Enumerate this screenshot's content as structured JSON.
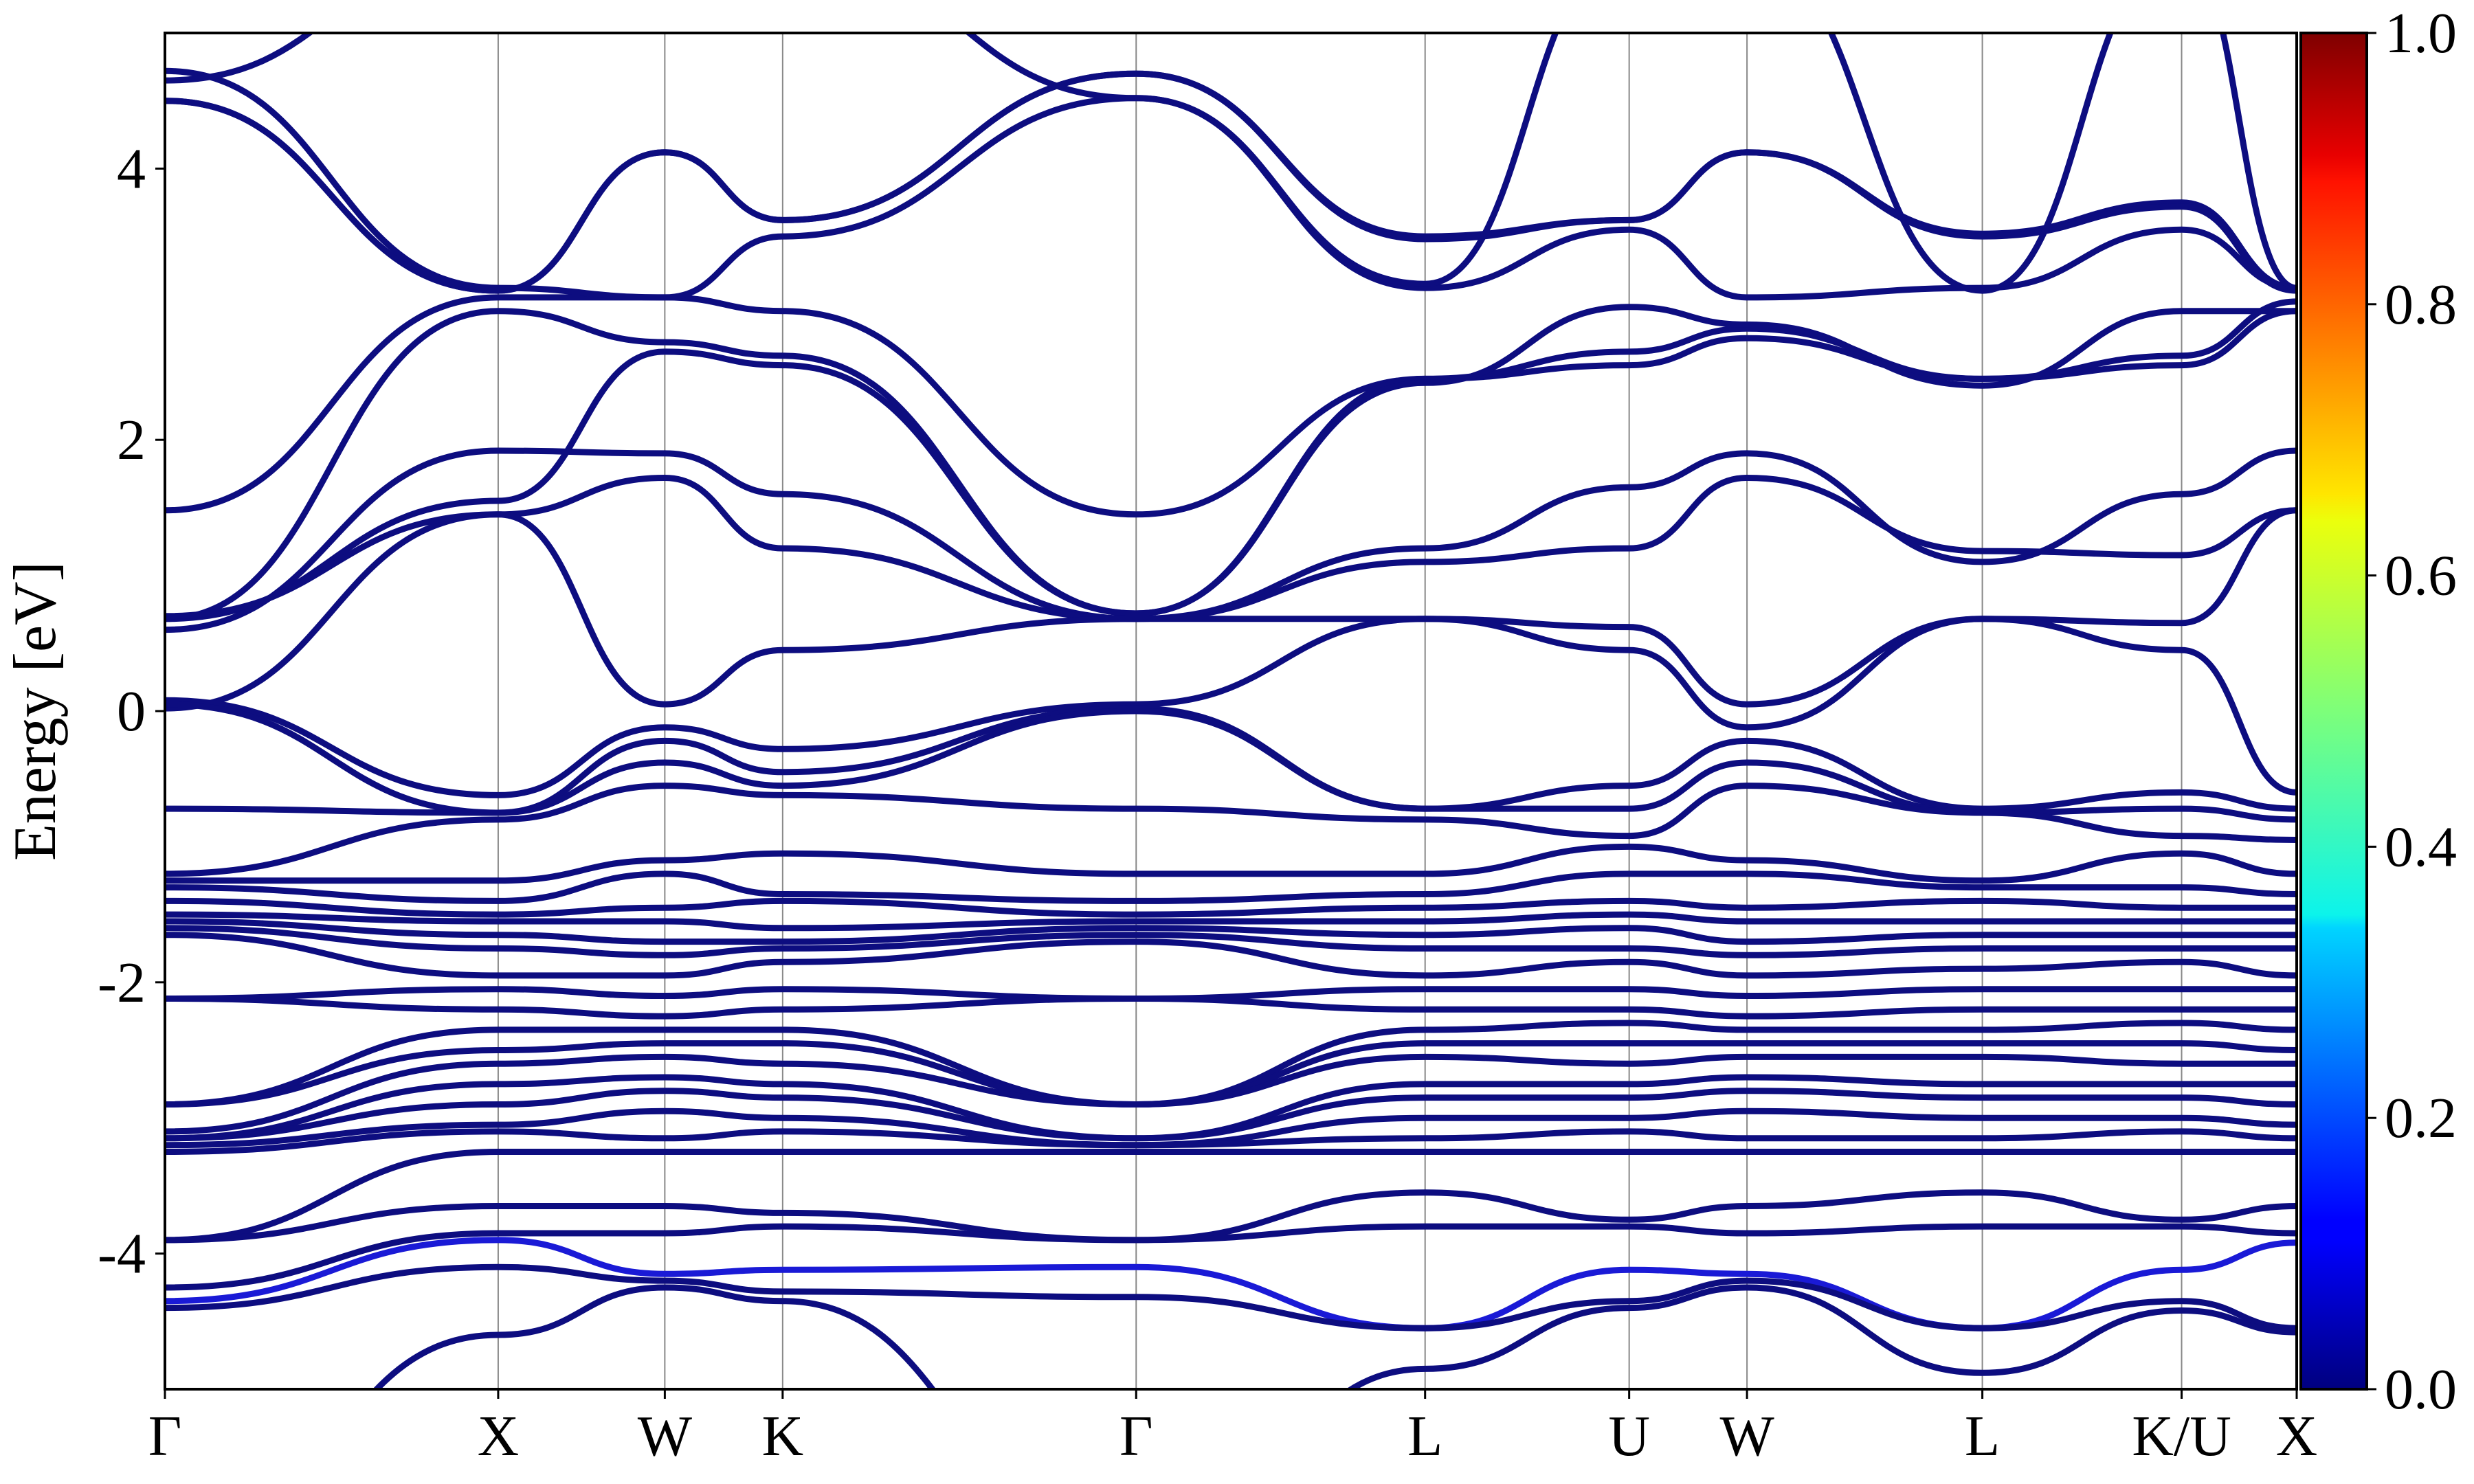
{
  "chart_data": {
    "type": "line",
    "title": "",
    "xlabel": "",
    "ylabel": "Energy [eV]",
    "ylim": [
      -5,
      5
    ],
    "y_ticks": [
      {
        "value": -4,
        "label": "-4"
      },
      {
        "value": -2,
        "label": "-2"
      },
      {
        "value": 0,
        "label": "0"
      },
      {
        "value": 2,
        "label": "2"
      },
      {
        "value": 4,
        "label": "4"
      }
    ],
    "xlim": [
      0,
      6.205
    ],
    "k_path": [
      {
        "label": "Γ",
        "x": 0.0
      },
      {
        "label": "X",
        "x": 0.97
      },
      {
        "label": "W",
        "x": 1.455
      },
      {
        "label": "K",
        "x": 1.798
      },
      {
        "label": "Γ",
        "x": 2.827
      },
      {
        "label": "L",
        "x": 3.668
      },
      {
        "label": "U",
        "x": 4.262
      },
      {
        "label": "W",
        "x": 4.605
      },
      {
        "label": "L",
        "x": 5.29
      },
      {
        "label": "K/U",
        "x": 5.87
      },
      {
        "label": "X",
        "x": 6.205
      }
    ],
    "grid": "vertical lines at high-symmetry points",
    "colormap": "jet",
    "colorbar": {
      "ticks": [
        {
          "value": 0.0,
          "label": "0.0"
        },
        {
          "value": 0.2,
          "label": "0.2"
        },
        {
          "value": 0.4,
          "label": "0.4"
        },
        {
          "value": 0.6,
          "label": "0.6"
        },
        {
          "value": 0.8,
          "label": "0.8"
        },
        {
          "value": 1.0,
          "label": "1.0"
        }
      ],
      "range": [
        0,
        1
      ]
    },
    "line_color": "#0d0d80",
    "highlight_color": "#1a1ad6",
    "series": [
      {
        "values": [
          1.48,
          3.05,
          3.05,
          2.95,
          1.45,
          2.45,
          2.55,
          2.75,
          2.45,
          2.55,
          2.95
        ],
        "weight": 0.05
      },
      {
        "values": [
          0.68,
          2.95,
          2.72,
          2.62,
          0.72,
          2.45,
          2.65,
          2.82,
          2.45,
          2.62,
          3.02
        ],
        "weight": 0.05
      },
      {
        "values": [
          0.68,
          1.55,
          2.65,
          2.55,
          0.72,
          2.42,
          2.98,
          2.85,
          2.4,
          2.95,
          2.95
        ],
        "weight": 0.05
      },
      {
        "values": [
          0.6,
          1.92,
          1.9,
          1.6,
          0.68,
          1.2,
          1.65,
          1.9,
          1.1,
          1.6,
          1.92
        ],
        "weight": 0.05
      },
      {
        "values": [
          0.02,
          1.45,
          1.72,
          1.2,
          0.68,
          1.1,
          1.2,
          1.72,
          1.18,
          1.15,
          1.48
        ],
        "weight": 0.05
      },
      {
        "values": [
          0.7,
          1.45,
          0.05,
          0.45,
          0.68,
          0.68,
          0.62,
          0.05,
          0.68,
          0.65,
          1.48
        ],
        "weight": 0.05
      },
      {
        "values": [
          0.08,
          -0.62,
          -0.12,
          -0.28,
          0.05,
          0.68,
          0.45,
          -0.12,
          0.68,
          0.45,
          -0.6
        ],
        "weight": 0.05
      },
      {
        "values": [
          0.05,
          -0.75,
          -0.22,
          -0.45,
          0.02,
          -0.72,
          -0.55,
          -0.22,
          -0.72,
          -0.6,
          -0.72
        ],
        "weight": 0.05
      },
      {
        "values": [
          -0.72,
          -0.75,
          -0.38,
          -0.55,
          0.0,
          -0.72,
          -0.72,
          -0.38,
          -0.75,
          -0.72,
          -0.8
        ],
        "weight": 0.05
      },
      {
        "values": [
          -1.2,
          -0.8,
          -0.55,
          -0.62,
          -0.72,
          -0.8,
          -0.92,
          -0.55,
          -0.75,
          -0.92,
          -0.95
        ],
        "weight": 0.05
      },
      {
        "values": [
          -1.25,
          -1.25,
          -1.1,
          -1.05,
          -1.2,
          -1.2,
          -1.0,
          -1.1,
          -1.25,
          -1.05,
          -1.2
        ],
        "weight": 0.05
      },
      {
        "values": [
          -1.3,
          -1.4,
          -1.2,
          -1.35,
          -1.4,
          -1.35,
          -1.2,
          -1.2,
          -1.3,
          -1.3,
          -1.35
        ],
        "weight": 0.05
      },
      {
        "values": [
          -1.4,
          -1.5,
          -1.45,
          -1.4,
          -1.5,
          -1.45,
          -1.4,
          -1.45,
          -1.4,
          -1.45,
          -1.45
        ],
        "weight": 0.05
      },
      {
        "values": [
          -1.5,
          -1.55,
          -1.55,
          -1.6,
          -1.55,
          -1.55,
          -1.5,
          -1.55,
          -1.55,
          -1.55,
          -1.55
        ],
        "weight": 0.05
      },
      {
        "values": [
          -1.55,
          -1.65,
          -1.7,
          -1.7,
          -1.6,
          -1.65,
          -1.6,
          -1.7,
          -1.65,
          -1.65,
          -1.65
        ],
        "weight": 0.05
      },
      {
        "values": [
          -1.6,
          -1.75,
          -1.8,
          -1.75,
          -1.65,
          -1.75,
          -1.75,
          -1.8,
          -1.75,
          -1.75,
          -1.75
        ],
        "weight": 0.05
      },
      {
        "values": [
          -1.65,
          -1.95,
          -1.95,
          -1.85,
          -1.7,
          -1.95,
          -1.85,
          -1.95,
          -1.9,
          -1.85,
          -1.95
        ],
        "weight": 0.05
      },
      {
        "values": [
          -2.12,
          -2.05,
          -2.1,
          -2.05,
          -2.12,
          -2.05,
          -2.05,
          -2.1,
          -2.05,
          -2.05,
          -2.05
        ],
        "weight": 0.05
      },
      {
        "values": [
          -2.12,
          -2.2,
          -2.25,
          -2.2,
          -2.12,
          -2.2,
          -2.2,
          -2.25,
          -2.2,
          -2.2,
          -2.2
        ],
        "weight": 0.05
      },
      {
        "values": [
          -2.9,
          -2.35,
          -2.35,
          -2.35,
          -2.9,
          -2.35,
          -2.3,
          -2.35,
          -2.35,
          -2.3,
          -2.35
        ],
        "weight": 0.05
      },
      {
        "values": [
          -2.9,
          -2.5,
          -2.45,
          -2.45,
          -2.9,
          -2.45,
          -2.45,
          -2.45,
          -2.45,
          -2.45,
          -2.5
        ],
        "weight": 0.05
      },
      {
        "values": [
          -3.1,
          -2.6,
          -2.55,
          -2.6,
          -2.9,
          -2.55,
          -2.6,
          -2.55,
          -2.55,
          -2.6,
          -2.6
        ],
        "weight": 0.05
      },
      {
        "values": [
          -3.15,
          -2.75,
          -2.7,
          -2.75,
          -3.15,
          -2.75,
          -2.75,
          -2.7,
          -2.75,
          -2.75,
          -2.75
        ],
        "weight": 0.05
      },
      {
        "values": [
          -3.15,
          -2.9,
          -2.8,
          -2.85,
          -3.15,
          -2.85,
          -2.85,
          -2.8,
          -2.85,
          -2.85,
          -2.9
        ],
        "weight": 0.05
      },
      {
        "values": [
          -3.2,
          -3.05,
          -2.95,
          -3.0,
          -3.2,
          -3.0,
          -3.0,
          -2.95,
          -3.0,
          -3.0,
          -3.05
        ],
        "weight": 0.05
      },
      {
        "values": [
          -3.25,
          -3.1,
          -3.15,
          -3.1,
          -3.2,
          -3.15,
          -3.1,
          -3.15,
          -3.15,
          -3.1,
          -3.15
        ],
        "weight": 0.05
      },
      {
        "values": [
          -3.9,
          -3.25,
          -3.25,
          -3.25,
          -3.25,
          -3.25,
          -3.25,
          -3.25,
          -3.25,
          -3.25,
          -3.25
        ],
        "weight": 0.05
      },
      {
        "values": [
          -3.9,
          -3.65,
          -3.65,
          -3.7,
          -3.9,
          -3.55,
          -3.75,
          -3.65,
          -3.55,
          -3.75,
          -3.65
        ],
        "weight": 0.05
      },
      {
        "values": [
          -4.25,
          -3.85,
          -3.85,
          -3.8,
          -3.9,
          -3.8,
          -3.8,
          -3.85,
          -3.8,
          -3.8,
          -3.85
        ],
        "weight": 0.05
      },
      {
        "values": [
          -4.35,
          -3.9,
          -4.15,
          -4.12,
          -4.1,
          -4.55,
          -4.12,
          -4.15,
          -4.55,
          -4.12,
          -3.92
        ],
        "weight": 0.22
      },
      {
        "values": [
          -4.4,
          -4.1,
          -4.2,
          -4.28,
          -4.32,
          -4.55,
          -4.35,
          -4.2,
          -4.55,
          -4.35,
          -4.55
        ],
        "weight": 0.05
      },
      {
        "values": [
          -6.2,
          -4.6,
          -4.25,
          -4.35,
          -6.2,
          -4.85,
          -4.4,
          -4.25,
          -4.88,
          -4.42,
          -4.58
        ],
        "weight": 0.05
      },
      {
        "values": [
          4.5,
          3.1,
          4.12,
          3.62,
          4.7,
          3.5,
          3.62,
          4.12,
          3.52,
          3.75,
          3.12
        ],
        "weight": 0.05
      },
      {
        "values": [
          4.5,
          3.1,
          4.12,
          3.62,
          4.7,
          3.48,
          3.62,
          4.12,
          3.5,
          3.72,
          3.1
        ],
        "weight": 0.05
      },
      {
        "values": [
          4.72,
          3.12,
          3.05,
          3.5,
          4.52,
          3.12,
          3.55,
          3.05,
          3.12,
          3.55,
          3.12
        ],
        "weight": 0.05
      },
      {
        "values": [
          4.65,
          5.6,
          5.6,
          5.6,
          4.52,
          3.15,
          5.6,
          5.6,
          3.1,
          5.6,
          3.12
        ],
        "weight": 0.08
      }
    ]
  }
}
